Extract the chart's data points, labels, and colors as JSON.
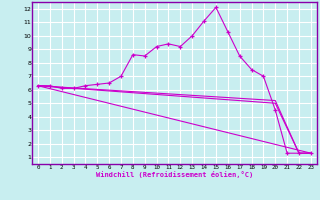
{
  "title": "",
  "xlabel": "Windchill (Refroidissement éolien,°C)",
  "bg_color": "#c8eef0",
  "line_color": "#cc00cc",
  "grid_color": "#ffffff",
  "xlim": [
    -0.5,
    23.5
  ],
  "ylim": [
    0.5,
    12.5
  ],
  "xticks": [
    0,
    1,
    2,
    3,
    4,
    5,
    6,
    7,
    8,
    9,
    10,
    11,
    12,
    13,
    14,
    15,
    16,
    17,
    18,
    19,
    20,
    21,
    22,
    23
  ],
  "yticks": [
    1,
    2,
    3,
    4,
    5,
    6,
    7,
    8,
    9,
    10,
    11,
    12
  ],
  "series": [
    {
      "x": [
        0,
        1,
        2,
        3,
        4,
        5,
        6,
        7,
        8,
        9,
        10,
        11,
        12,
        13,
        14,
        15,
        16,
        17,
        18,
        19,
        20,
        21,
        22,
        23
      ],
      "y": [
        6.3,
        6.3,
        6.1,
        6.1,
        6.3,
        6.4,
        6.5,
        7.0,
        8.6,
        8.5,
        9.2,
        9.4,
        9.2,
        10.0,
        11.1,
        12.1,
        10.3,
        8.5,
        7.5,
        7.0,
        4.5,
        1.3,
        1.3,
        1.3
      ],
      "marker": true
    },
    {
      "x": [
        0,
        23
      ],
      "y": [
        6.3,
        1.3
      ],
      "marker": false
    },
    {
      "x": [
        0,
        20,
        22,
        23
      ],
      "y": [
        6.3,
        5.2,
        1.3,
        1.3
      ],
      "marker": false
    },
    {
      "x": [
        0,
        20,
        22,
        23
      ],
      "y": [
        6.3,
        5.0,
        1.3,
        1.3
      ],
      "marker": false
    }
  ]
}
